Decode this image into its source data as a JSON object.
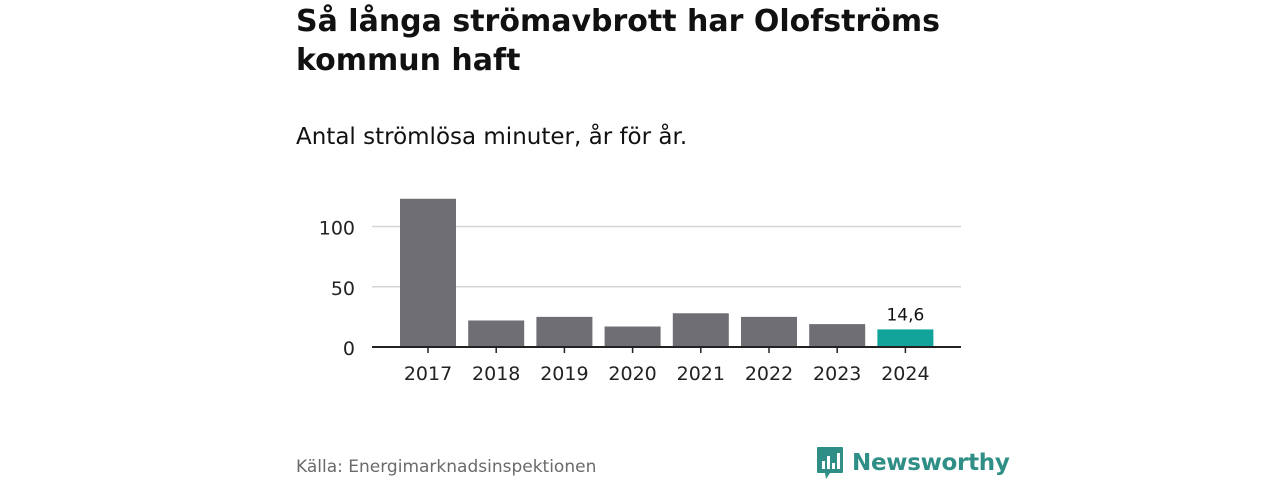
{
  "header": {
    "title": "Så långa strömavbrott har Olofströms kommun haft",
    "subtitle": "Antal strömlösa minuter, år för år."
  },
  "footer": {
    "source": "Källa: Energimarknadsinspektionen",
    "brand": "Newsworthy"
  },
  "colors": {
    "bar": "#6e6e74",
    "highlight": "#12a39a",
    "grid": "#d6d6d6",
    "axis": "#222222",
    "brand": "#2f8f86"
  },
  "icons": {
    "brand": "bar-chart-speech-bubble-icon"
  },
  "chart_data": {
    "type": "bar",
    "title": "Så långa strömavbrott har Olofströms kommun haft",
    "subtitle": "Antal strömlösa minuter, år för år.",
    "categories": [
      "2017",
      "2018",
      "2019",
      "2020",
      "2021",
      "2022",
      "2023",
      "2024"
    ],
    "values": [
      123,
      22,
      25,
      17,
      28,
      25,
      19,
      14.6
    ],
    "highlight_index": 7,
    "data_labels": [
      {
        "index": 7,
        "text": "14,6"
      }
    ],
    "yticks": [
      0,
      50,
      100
    ],
    "ylim": [
      0,
      125
    ],
    "xlabel": "",
    "ylabel": "",
    "grid": true,
    "legend": "none"
  }
}
